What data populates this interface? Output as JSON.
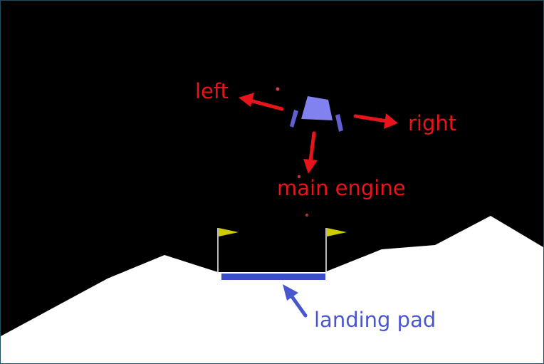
{
  "labels": {
    "left": "left",
    "right": "right",
    "main_engine": "main engine",
    "landing_pad": "landing pad"
  },
  "colors": {
    "sky": "#000000",
    "terrain": "#ffffff",
    "lander_body": "#8181f0",
    "lander_legs": "#6060d0",
    "pad": "#3a4fc7",
    "flag": "#cccc00",
    "annotation_red": "#e8141b",
    "annotation_blue": "#4a56d0",
    "particle": "#d04040"
  },
  "icons": {
    "lander": "lunar-lander-icon",
    "flag": "flag-icon",
    "arrow": "arrow-icon"
  }
}
